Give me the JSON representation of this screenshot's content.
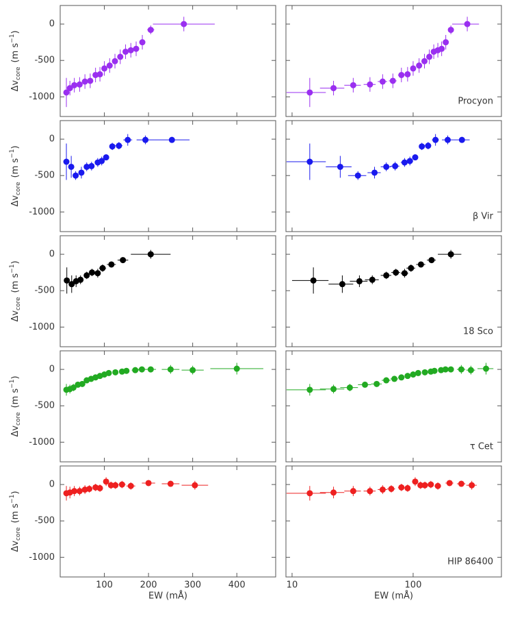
{
  "chart_data": [
    {
      "type": "scatter",
      "label": "Procyon",
      "color": "#9a2ff0",
      "ylabel": [
        "Δv",
        "core",
        "(m s",
        "−1",
        ")"
      ],
      "x": [
        14,
        22,
        32,
        44,
        56,
        68,
        80,
        90,
        100,
        112,
        124,
        136,
        148,
        160,
        172,
        186,
        205,
        280
      ],
      "values": [
        -940,
        -880,
        -840,
        -830,
        -790,
        -780,
        -700,
        -690,
        -610,
        -570,
        -510,
        -450,
        -380,
        -360,
        -340,
        -250,
        -80,
        0
      ],
      "xerr": [
        5,
        5,
        5,
        5,
        5,
        5,
        5,
        5,
        5,
        5,
        5,
        5,
        5,
        5,
        6,
        6,
        8,
        70
      ],
      "yerr": [
        200,
        100,
        100,
        100,
        100,
        100,
        100,
        100,
        100,
        100,
        100,
        100,
        100,
        100,
        100,
        100,
        60,
        100
      ],
      "ylim": [
        -1270,
        255
      ],
      "yticks": [
        0,
        -500,
        -1000
      ]
    },
    {
      "type": "scatter",
      "label": "β Vir",
      "color": "#1a1aee",
      "ylabel": [
        "Δv",
        "core",
        "(m s",
        "−1",
        ")"
      ],
      "x": [
        14,
        25,
        35,
        48,
        60,
        71,
        85,
        94,
        104,
        118,
        133,
        153,
        193,
        253
      ],
      "values": [
        -310,
        -380,
        -500,
        -460,
        -380,
        -370,
        -320,
        -300,
        -250,
        -100,
        -90,
        -10,
        -10,
        -10
      ],
      "xerr": [
        5,
        6,
        6,
        6,
        6,
        6,
        6,
        6,
        6,
        6,
        8,
        10,
        20,
        40
      ],
      "yerr": [
        250,
        150,
        60,
        80,
        60,
        60,
        60,
        60,
        40,
        50,
        50,
        80,
        60,
        30
      ],
      "ylim": [
        -1270,
        255
      ],
      "yticks": [
        0,
        -500,
        -1000
      ]
    },
    {
      "type": "scatter",
      "label": "18 Sco",
      "color": "#000000",
      "ylabel": [
        "Δv",
        "core",
        "(m s",
        "−1",
        ")"
      ],
      "x": [
        15,
        26,
        36,
        46,
        60,
        72,
        85,
        96,
        116,
        142,
        205
      ],
      "values": [
        -360,
        -410,
        -370,
        -350,
        -290,
        -250,
        -260,
        -190,
        -140,
        -80,
        0
      ],
      "xerr": [
        5,
        6,
        6,
        6,
        6,
        6,
        6,
        8,
        10,
        12,
        45
      ],
      "yerr": [
        180,
        120,
        80,
        60,
        50,
        50,
        60,
        50,
        40,
        40,
        60
      ],
      "ylim": [
        -1270,
        255
      ],
      "yticks": [
        0,
        -500,
        -1000
      ]
    },
    {
      "type": "scatter",
      "label": "τ Cet",
      "color": "#22aa22",
      "ylabel": [
        "Δv",
        "core",
        "(m s",
        "−1",
        ")"
      ],
      "x": [
        14,
        22,
        30,
        40,
        50,
        60,
        70,
        80,
        90,
        100,
        110,
        125,
        140,
        150,
        170,
        185,
        205,
        250,
        300,
        400
      ],
      "values": [
        -280,
        -270,
        -250,
        -210,
        -200,
        -150,
        -130,
        -110,
        -90,
        -70,
        -50,
        -40,
        -30,
        -20,
        -10,
        0,
        0,
        0,
        -10,
        10
      ],
      "xerr": [
        5,
        5,
        5,
        5,
        5,
        5,
        5,
        5,
        5,
        5,
        5,
        6,
        6,
        6,
        8,
        10,
        12,
        20,
        25,
        60
      ],
      "yerr": [
        80,
        60,
        50,
        40,
        40,
        40,
        40,
        40,
        40,
        40,
        40,
        40,
        40,
        40,
        40,
        40,
        40,
        60,
        60,
        80
      ],
      "ylim": [
        -1270,
        255
      ],
      "yticks": [
        0,
        -500,
        -1000
      ]
    },
    {
      "type": "scatter",
      "label": "HIP 86400",
      "color": "#ee2020",
      "ylabel": [
        "Δv",
        "core",
        "(m s",
        "−1",
        ")"
      ],
      "x": [
        14,
        22,
        32,
        44,
        56,
        66,
        80,
        90,
        104,
        115,
        125,
        140,
        160,
        200,
        250,
        305
      ],
      "values": [
        -120,
        -110,
        -90,
        -90,
        -70,
        -60,
        -40,
        -50,
        40,
        -10,
        -10,
        0,
        -20,
        20,
        10,
        -10
      ],
      "xerr": [
        5,
        5,
        5,
        5,
        5,
        5,
        5,
        5,
        6,
        6,
        6,
        8,
        10,
        15,
        20,
        30
      ],
      "yerr": [
        100,
        80,
        70,
        60,
        60,
        50,
        50,
        50,
        60,
        50,
        50,
        50,
        50,
        40,
        40,
        60
      ],
      "ylim": [
        -1270,
        255
      ],
      "yticks": [
        0,
        -500,
        -1000
      ]
    }
  ],
  "x_panels": [
    {
      "xlim": [
        0,
        488
      ],
      "xticks": [
        100,
        200,
        300,
        400
      ],
      "log": false
    },
    {
      "xlim": [
        8.9,
        536
      ],
      "xticks": [
        10,
        100
      ],
      "log": true
    }
  ],
  "xlabel": "EW (mÅ)"
}
